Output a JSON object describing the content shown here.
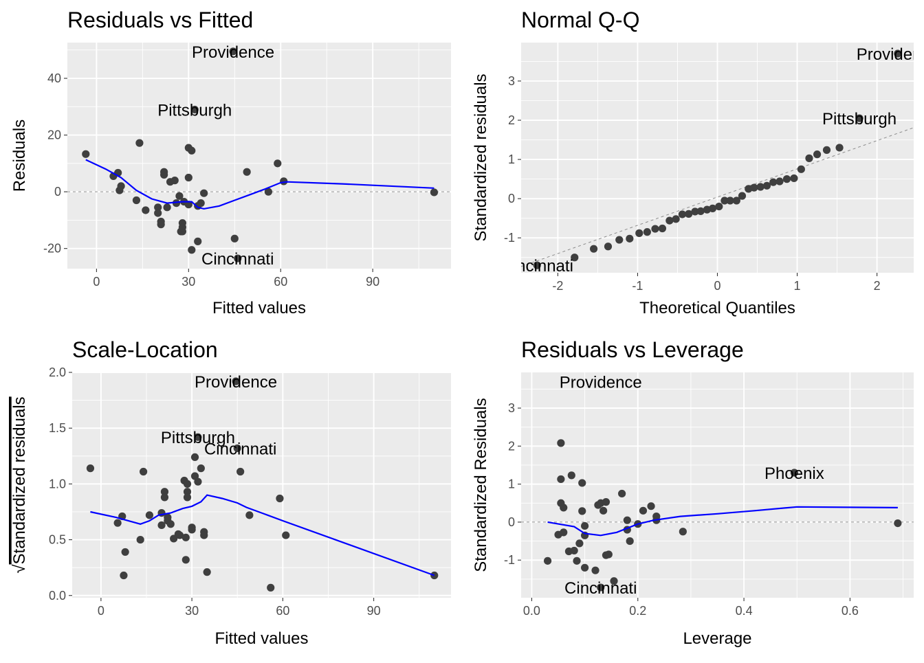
{
  "colors": {
    "panel_bg": "#EBEBEB",
    "grid": "#FFFFFF",
    "point": "#3F3F3F",
    "smooth": "#0000FF",
    "refline": "#8C8C8C",
    "tick_text": "#4D4D4D",
    "text": "#000000"
  },
  "chart_data": [
    {
      "id": "rvf",
      "type": "scatter",
      "title": "Residuals vs Fitted",
      "xlabel": "Fitted values",
      "ylabel": "Residuals",
      "xlim": [
        -9.5,
        115.5
      ],
      "ylim": [
        -27.1,
        52.6
      ],
      "xticks": [
        0,
        30,
        60,
        90
      ],
      "xtick_labels": [
        "0",
        "30",
        "60",
        "90"
      ],
      "yticks": [
        -20,
        0,
        20,
        40
      ],
      "ytick_labels": [
        "-20",
        "0",
        "20",
        "40"
      ],
      "grid": true,
      "hline": 0,
      "points": [
        [
          -3.5,
          13.3
        ],
        [
          5.5,
          5.5
        ],
        [
          7,
          6.7
        ],
        [
          7.5,
          0.5
        ],
        [
          8,
          2
        ],
        [
          13,
          -3
        ],
        [
          14,
          17.2
        ],
        [
          16,
          -6.5
        ],
        [
          20,
          -5.5
        ],
        [
          20,
          -7.5
        ],
        [
          21,
          -10.5
        ],
        [
          21,
          -11.5
        ],
        [
          22,
          7
        ],
        [
          22,
          6
        ],
        [
          23,
          -5.5
        ],
        [
          24,
          3.5
        ],
        [
          25.5,
          4
        ],
        [
          26,
          -4
        ],
        [
          27,
          -1.5
        ],
        [
          27.5,
          -14
        ],
        [
          28,
          -14
        ],
        [
          28,
          -11
        ],
        [
          28,
          -12.5
        ],
        [
          28.5,
          -3.5
        ],
        [
          30,
          5
        ],
        [
          30,
          -4.5
        ],
        [
          30,
          15.5
        ],
        [
          31,
          14.5
        ],
        [
          31,
          -20.5
        ],
        [
          32,
          29
        ],
        [
          33,
          -17.5
        ],
        [
          33,
          -5
        ],
        [
          34,
          -4
        ],
        [
          35,
          -0.5
        ],
        [
          44.5,
          49.5
        ],
        [
          45,
          -16.5
        ],
        [
          46,
          -23.5
        ],
        [
          49,
          7
        ],
        [
          56,
          0
        ],
        [
          59,
          10
        ],
        [
          61,
          3.7
        ],
        [
          110,
          -0.2
        ]
      ],
      "smooth": [
        [
          -3.5,
          11.3
        ],
        [
          3,
          8
        ],
        [
          8,
          5
        ],
        [
          13,
          0.5
        ],
        [
          18,
          -2.5
        ],
        [
          23,
          -4
        ],
        [
          28,
          -3.5
        ],
        [
          31,
          -3.5
        ],
        [
          33,
          -5.5
        ],
        [
          35,
          -6
        ],
        [
          40,
          -5
        ],
        [
          45,
          -3
        ],
        [
          50,
          -1
        ],
        [
          55,
          1
        ],
        [
          60,
          3.2
        ],
        [
          62,
          3.5
        ],
        [
          80,
          2.8
        ],
        [
          110,
          1.3
        ]
      ],
      "annotations": [
        {
          "text": "Providence",
          "x": 44.5,
          "y": 49.5
        },
        {
          "text": "Pittsburgh",
          "x": 32,
          "y": 29
        },
        {
          "text": "Cincinnati",
          "x": 46,
          "y": -23.5
        }
      ]
    },
    {
      "id": "qq",
      "type": "scatter",
      "title": "Normal Q-Q",
      "xlabel": "Theoretical Quantiles",
      "ylabel": "Standardized residuals",
      "xlim": [
        -2.46,
        2.46
      ],
      "ylim": [
        -1.89,
        3.98
      ],
      "xticks": [
        -2,
        -1,
        0,
        1,
        2
      ],
      "xtick_labels": [
        "-2",
        "-1",
        "0",
        "1",
        "2"
      ],
      "yticks": [
        -1,
        0,
        1,
        2,
        3
      ],
      "ytick_labels": [
        "-1",
        "0",
        "1",
        "2",
        "3"
      ],
      "grid": true,
      "refline": {
        "intercept": 0.04,
        "slope": 0.72
      },
      "points": [
        [
          -2.26,
          -1.7
        ],
        [
          -1.79,
          -1.5
        ],
        [
          -1.55,
          -1.28
        ],
        [
          -1.37,
          -1.22
        ],
        [
          -1.23,
          -1.05
        ],
        [
          -1.1,
          -1.02
        ],
        [
          -0.98,
          -0.88
        ],
        [
          -0.88,
          -0.85
        ],
        [
          -0.78,
          -0.77
        ],
        [
          -0.69,
          -0.76
        ],
        [
          -0.6,
          -0.56
        ],
        [
          -0.52,
          -0.52
        ],
        [
          -0.44,
          -0.4
        ],
        [
          -0.36,
          -0.39
        ],
        [
          -0.28,
          -0.33
        ],
        [
          -0.21,
          -0.32
        ],
        [
          -0.13,
          -0.28
        ],
        [
          -0.06,
          -0.25
        ],
        [
          0.02,
          -0.2
        ],
        [
          0.09,
          -0.05
        ],
        [
          0.16,
          -0.05
        ],
        [
          0.24,
          -0.05
        ],
        [
          0.31,
          0.07
        ],
        [
          0.39,
          0.25
        ],
        [
          0.46,
          0.28
        ],
        [
          0.54,
          0.3
        ],
        [
          0.62,
          0.33
        ],
        [
          0.7,
          0.42
        ],
        [
          0.78,
          0.44
        ],
        [
          0.87,
          0.5
        ],
        [
          0.96,
          0.52
        ],
        [
          1.05,
          0.75
        ],
        [
          1.15,
          1.03
        ],
        [
          1.25,
          1.13
        ],
        [
          1.37,
          1.24
        ],
        [
          1.53,
          1.3
        ],
        [
          1.78,
          2.05
        ],
        [
          2.26,
          3.7
        ]
      ],
      "annotations": [
        {
          "text": "Providence",
          "x": 2.26,
          "y": 3.7
        },
        {
          "text": "Pittsburgh",
          "x": 1.78,
          "y": 2.05
        },
        {
          "text": "Cincinnati",
          "x": -2.26,
          "y": -1.7
        }
      ]
    },
    {
      "id": "sl",
      "type": "scatter",
      "title": "Scale-Location",
      "xlabel": "Fitted values",
      "ylabel": "Standardized residuals",
      "ylabel_prefix": "√",
      "xlim": [
        -9.5,
        115.5
      ],
      "ylim": [
        -0.02,
        2.0
      ],
      "xticks": [
        0,
        30,
        60,
        90
      ],
      "xtick_labels": [
        "0",
        "30",
        "60",
        "90"
      ],
      "yticks": [
        0,
        0.5,
        1,
        1.5,
        2
      ],
      "ytick_labels": [
        "0.0",
        "0.5",
        "1.0",
        "1.5",
        "2.0"
      ],
      "grid": true,
      "points": [
        [
          -3.5,
          1.14
        ],
        [
          5.5,
          0.65
        ],
        [
          7,
          0.71
        ],
        [
          7.5,
          0.18
        ],
        [
          8,
          0.39
        ],
        [
          13,
          0.5
        ],
        [
          14,
          1.11
        ],
        [
          16,
          0.72
        ],
        [
          20,
          0.74
        ],
        [
          20,
          0.63
        ],
        [
          21,
          0.93
        ],
        [
          21,
          0.88
        ],
        [
          22,
          0.7
        ],
        [
          22,
          0.67
        ],
        [
          23,
          0.64
        ],
        [
          24,
          0.51
        ],
        [
          25.5,
          0.55
        ],
        [
          26,
          0.54
        ],
        [
          27.5,
          1.03
        ],
        [
          28,
          0.32
        ],
        [
          28,
          0.52
        ],
        [
          28.5,
          1.0
        ],
        [
          28.5,
          0.93
        ],
        [
          28.5,
          0.88
        ],
        [
          30,
          0.61
        ],
        [
          30,
          0.59
        ],
        [
          31,
          1.07
        ],
        [
          31,
          1.24
        ],
        [
          32,
          1.02
        ],
        [
          32,
          1.42
        ],
        [
          33,
          1.14
        ],
        [
          34,
          0.57
        ],
        [
          34,
          0.54
        ],
        [
          35,
          0.21
        ],
        [
          44.5,
          1.92
        ],
        [
          45,
          1.32
        ],
        [
          46,
          1.11
        ],
        [
          49,
          0.72
        ],
        [
          56,
          0.07
        ],
        [
          59,
          0.87
        ],
        [
          61,
          0.54
        ],
        [
          110,
          0.18
        ]
      ],
      "smooth": [
        [
          -3.5,
          0.75
        ],
        [
          5,
          0.7
        ],
        [
          13,
          0.64
        ],
        [
          16,
          0.67
        ],
        [
          19,
          0.72
        ],
        [
          21,
          0.73
        ],
        [
          23,
          0.74
        ],
        [
          25,
          0.76
        ],
        [
          27,
          0.78
        ],
        [
          30,
          0.8
        ],
        [
          33,
          0.84
        ],
        [
          35,
          0.9
        ],
        [
          40,
          0.87
        ],
        [
          45,
          0.83
        ],
        [
          48,
          0.79
        ],
        [
          55,
          0.72
        ],
        [
          60,
          0.67
        ],
        [
          110,
          0.18
        ]
      ],
      "annotations": [
        {
          "text": "Providence",
          "x": 44.5,
          "y": 1.92
        },
        {
          "text": "Pittsburgh",
          "x": 32,
          "y": 1.42
        },
        {
          "text": "Cincinnati",
          "x": 46,
          "y": 1.32
        }
      ]
    },
    {
      "id": "rvl",
      "type": "scatter",
      "title": "Residuals vs Leverage",
      "xlabel": "Leverage",
      "ylabel": "Standardized Residuals",
      "xlim": [
        -0.02,
        0.72
      ],
      "ylim": [
        -1.99,
        3.94
      ],
      "xticks": [
        0,
        0.2,
        0.4,
        0.6
      ],
      "xtick_labels": [
        "0.0",
        "0.2",
        "0.4",
        "0.6"
      ],
      "yticks": [
        -1,
        0,
        1,
        2,
        3
      ],
      "ytick_labels": [
        "-1",
        "0",
        "1",
        "2",
        "3"
      ],
      "grid": true,
      "hline": 0,
      "points": [
        [
          0.03,
          -1.02
        ],
        [
          0.05,
          -0.33
        ],
        [
          0.055,
          2.08
        ],
        [
          0.055,
          1.13
        ],
        [
          0.055,
          0.5
        ],
        [
          0.06,
          0.38
        ],
        [
          0.06,
          -0.27
        ],
        [
          0.07,
          -0.77
        ],
        [
          0.075,
          1.23
        ],
        [
          0.08,
          -0.75
        ],
        [
          0.085,
          -1.02
        ],
        [
          0.09,
          -0.56
        ],
        [
          0.095,
          1.03
        ],
        [
          0.095,
          0.29
        ],
        [
          0.1,
          -0.1
        ],
        [
          0.1,
          -0.35
        ],
        [
          0.1,
          -1.2
        ],
        [
          0.12,
          -1.27
        ],
        [
          0.125,
          0.45
        ],
        [
          0.13,
          -1.72
        ],
        [
          0.13,
          0.5
        ],
        [
          0.135,
          0.3
        ],
        [
          0.14,
          -0.87
        ],
        [
          0.14,
          0.53
        ],
        [
          0.145,
          -0.85
        ],
        [
          0.155,
          -1.55
        ],
        [
          0.17,
          0.75
        ],
        [
          0.18,
          0.05
        ],
        [
          0.18,
          -0.2
        ],
        [
          0.185,
          -0.5
        ],
        [
          0.2,
          -0.05
        ],
        [
          0.21,
          0.3
        ],
        [
          0.225,
          0.42
        ],
        [
          0.235,
          0.15
        ],
        [
          0.235,
          0.05
        ],
        [
          0.285,
          -0.25
        ],
        [
          0.495,
          1.3
        ],
        [
          0.69,
          -0.03
        ]
      ],
      "smooth": [
        [
          0.03,
          0.0
        ],
        [
          0.08,
          -0.12
        ],
        [
          0.1,
          -0.3
        ],
        [
          0.13,
          -0.35
        ],
        [
          0.16,
          -0.27
        ],
        [
          0.2,
          -0.05
        ],
        [
          0.23,
          0.05
        ],
        [
          0.28,
          0.15
        ],
        [
          0.35,
          0.22
        ],
        [
          0.42,
          0.3
        ],
        [
          0.5,
          0.4
        ],
        [
          0.6,
          0.39
        ],
        [
          0.69,
          0.38
        ]
      ],
      "annotations": [
        {
          "text": "Providence",
          "x": 0.13,
          "y": 3.7
        },
        {
          "text": "Phoenix",
          "x": 0.495,
          "y": 1.3
        },
        {
          "text": "Cincinnati",
          "x": 0.13,
          "y": -1.72
        }
      ]
    }
  ]
}
